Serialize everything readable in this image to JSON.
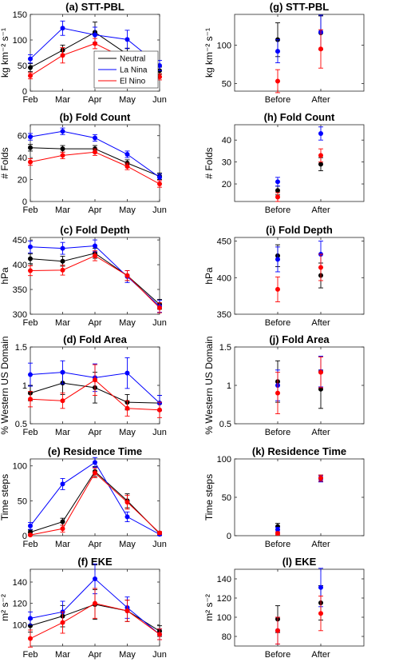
{
  "colors": {
    "Neutral": "#000000",
    "La Nina": "#0000ff",
    "El Nino": "#ff0000"
  },
  "legend": [
    "Neutral",
    "La Nina",
    "El Nino"
  ],
  "chart_data": [
    {
      "id": "a",
      "type": "line",
      "title": "(a) STT-PBL",
      "ylabel": "kg km⁻² s⁻¹",
      "categories": [
        "Feb",
        "Mar",
        "Apr",
        "May",
        "Jun"
      ],
      "ylim": [
        0,
        150
      ],
      "yticks": [
        0,
        50,
        100,
        150
      ],
      "legend": true,
      "series": [
        {
          "name": "Neutral",
          "values": [
            46,
            80,
            115,
            72,
            40
          ],
          "err": [
            8,
            10,
            20,
            12,
            7
          ]
        },
        {
          "name": "La Nina",
          "values": [
            63,
            123,
            110,
            101,
            50
          ],
          "err": [
            8,
            14,
            15,
            18,
            10
          ]
        },
        {
          "name": "El Nino",
          "values": [
            30,
            70,
            93,
            62,
            28
          ],
          "err": [
            6,
            15,
            10,
            12,
            6
          ]
        }
      ]
    },
    {
      "id": "g",
      "type": "scatter",
      "title": "(g) STT-PBL",
      "ylabel": "kg km⁻² s⁻¹",
      "categories": [
        "Before",
        "After"
      ],
      "ylim": [
        40,
        140
      ],
      "yticks": [
        50,
        100
      ],
      "legend": false,
      "series": [
        {
          "name": "Neutral",
          "values": [
            107,
            116
          ],
          "err": [
            22,
            22
          ]
        },
        {
          "name": "La Nina",
          "values": [
            92,
            117
          ],
          "err": [
            15,
            22
          ]
        },
        {
          "name": "El Nino",
          "values": [
            53,
            95
          ],
          "err": [
            15,
            25
          ]
        }
      ]
    },
    {
      "id": "b",
      "type": "line",
      "title": "(b) Fold Count",
      "ylabel": "# Folds",
      "categories": [
        "Feb",
        "Mar",
        "Apr",
        "May",
        "Jun"
      ],
      "ylim": [
        0,
        70
      ],
      "yticks": [
        0,
        20,
        40,
        60
      ],
      "legend": false,
      "series": [
        {
          "name": "Neutral",
          "values": [
            49,
            48,
            48,
            35,
            23
          ],
          "err": [
            3,
            3,
            3,
            3,
            3
          ]
        },
        {
          "name": "La Nina",
          "values": [
            59,
            64,
            58,
            43,
            22
          ],
          "err": [
            3,
            3,
            3,
            3,
            3
          ]
        },
        {
          "name": "El Nino",
          "values": [
            36,
            42,
            45,
            32,
            16
          ],
          "err": [
            3,
            3,
            3,
            3,
            3
          ]
        }
      ]
    },
    {
      "id": "h",
      "type": "scatter",
      "title": "(h) Fold Count",
      "ylabel": "# Folds",
      "categories": [
        "Before",
        "After"
      ],
      "ylim": [
        12,
        47
      ],
      "yticks": [
        20,
        30,
        40
      ],
      "legend": false,
      "series": [
        {
          "name": "Neutral",
          "values": [
            17,
            29
          ],
          "err": [
            2,
            3
          ]
        },
        {
          "name": "La Nina",
          "values": [
            21,
            43
          ],
          "err": [
            2,
            3
          ]
        },
        {
          "name": "El Nino",
          "values": [
            14,
            33
          ],
          "err": [
            2,
            3
          ]
        }
      ]
    },
    {
      "id": "c",
      "type": "line",
      "title": "(c) Fold Depth",
      "ylabel": "hPa",
      "categories": [
        "Feb",
        "Mar",
        "Apr",
        "May",
        "Jun"
      ],
      "ylim": [
        300,
        455
      ],
      "yticks": [
        300,
        350,
        400,
        450
      ],
      "legend": false,
      "series": [
        {
          "name": "Neutral",
          "values": [
            412,
            407,
            423,
            378,
            320
          ],
          "err": [
            10,
            10,
            10,
            10,
            10
          ]
        },
        {
          "name": "La Nina",
          "values": [
            436,
            433,
            438,
            376,
            316
          ],
          "err": [
            12,
            12,
            12,
            12,
            12
          ]
        },
        {
          "name": "El Nino",
          "values": [
            388,
            389,
            418,
            378,
            313
          ],
          "err": [
            10,
            10,
            10,
            10,
            10
          ]
        }
      ]
    },
    {
      "id": "i",
      "type": "scatter",
      "title": "(i) Fold Depth",
      "ylabel": "hPa",
      "categories": [
        "Before",
        "After"
      ],
      "ylim": [
        350,
        455
      ],
      "yticks": [
        350,
        400,
        450
      ],
      "legend": false,
      "series": [
        {
          "name": "Neutral",
          "values": [
            430,
            403
          ],
          "err": [
            15,
            17
          ]
        },
        {
          "name": "La Nina",
          "values": [
            425,
            432
          ],
          "err": [
            17,
            18
          ]
        },
        {
          "name": "El Nino",
          "values": [
            384,
            414
          ],
          "err": [
            17,
            18
          ]
        }
      ]
    },
    {
      "id": "d",
      "type": "line",
      "title": "(d) Fold Area",
      "ylabel": "% Western US Domain",
      "categories": [
        "Feb",
        "Mar",
        "Apr",
        "May",
        "Jun"
      ],
      "ylim": [
        0.5,
        1.5
      ],
      "yticks": [
        0.5,
        1,
        1.5
      ],
      "legend": false,
      "series": [
        {
          "name": "Neutral",
          "values": [
            0.9,
            1.03,
            0.97,
            0.78,
            0.77
          ],
          "err": [
            0.1,
            0.15,
            0.2,
            0.1,
            0.1
          ]
        },
        {
          "name": "La Nina",
          "values": [
            1.14,
            1.17,
            1.1,
            1.16,
            0.77
          ],
          "err": [
            0.15,
            0.15,
            0.18,
            0.2,
            0.1
          ]
        },
        {
          "name": "El Nino",
          "values": [
            0.82,
            0.8,
            1.07,
            0.7,
            0.68
          ],
          "err": [
            0.1,
            0.1,
            0.2,
            0.1,
            0.1
          ]
        }
      ]
    },
    {
      "id": "j",
      "type": "scatter",
      "title": "(j) Fold Area",
      "ylabel": "% Western US Domain",
      "categories": [
        "Before",
        "After"
      ],
      "ylim": [
        0.5,
        1.5
      ],
      "yticks": [
        0.5,
        1,
        1.5
      ],
      "legend": false,
      "series": [
        {
          "name": "Neutral",
          "values": [
            1.05,
            0.95
          ],
          "err": [
            0.27,
            0.25
          ]
        },
        {
          "name": "La Nina",
          "values": [
            1.0,
            1.18
          ],
          "err": [
            0.2,
            0.2
          ]
        },
        {
          "name": "El Nino",
          "values": [
            0.9,
            1.17
          ],
          "err": [
            0.27,
            0.2
          ]
        }
      ]
    },
    {
      "id": "e",
      "type": "line",
      "title": "(e) Residence Time",
      "ylabel": "Time steps",
      "categories": [
        "Feb",
        "Mar",
        "Apr",
        "May",
        "Jun"
      ],
      "ylim": [
        0,
        110
      ],
      "yticks": [
        0,
        50,
        100
      ],
      "legend": false,
      "series": [
        {
          "name": "Neutral",
          "values": [
            5,
            20,
            92,
            50,
            3
          ],
          "err": [
            3,
            5,
            7,
            10,
            2
          ]
        },
        {
          "name": "La Nina",
          "values": [
            14,
            74,
            105,
            27,
            2
          ],
          "err": [
            5,
            8,
            7,
            7,
            2
          ]
        },
        {
          "name": "El Nino",
          "values": [
            1,
            10,
            90,
            48,
            4
          ],
          "err": [
            1,
            5,
            7,
            10,
            2
          ]
        }
      ]
    },
    {
      "id": "k",
      "type": "scatter",
      "title": "(k) Residence Time",
      "ylabel": "Time steps",
      "categories": [
        "Before",
        "After"
      ],
      "ylim": [
        0,
        100
      ],
      "yticks": [
        0,
        50,
        100
      ],
      "legend": false,
      "series": [
        {
          "name": "Neutral",
          "values": [
            12,
            75
          ],
          "err": [
            4,
            4
          ]
        },
        {
          "name": "La Nina",
          "values": [
            8,
            74
          ],
          "err": [
            3,
            4
          ]
        },
        {
          "name": "El Nino",
          "values": [
            3,
            75
          ],
          "err": [
            2,
            4
          ]
        }
      ]
    },
    {
      "id": "f",
      "type": "line",
      "title": "(f) EKE",
      "ylabel": "m² s⁻²",
      "categories": [
        "Feb",
        "Mar",
        "Apr",
        "May",
        "Jun"
      ],
      "ylim": [
        80,
        152
      ],
      "yticks": [
        100,
        120,
        140
      ],
      "legend": false,
      "series": [
        {
          "name": "Neutral",
          "values": [
            99,
            108,
            119,
            113,
            94
          ],
          "err": [
            6,
            10,
            14,
            10,
            5
          ]
        },
        {
          "name": "La Nina",
          "values": [
            106,
            112,
            143,
            116,
            91
          ],
          "err": [
            6,
            10,
            14,
            10,
            5
          ]
        },
        {
          "name": "El Nino",
          "values": [
            87,
            102,
            120,
            113,
            91
          ],
          "err": [
            8,
            10,
            14,
            10,
            5
          ]
        }
      ]
    },
    {
      "id": "l",
      "type": "scatter",
      "title": "(l) EKE",
      "ylabel": "m² s⁻²",
      "categories": [
        "Before",
        "After"
      ],
      "ylim": [
        70,
        150
      ],
      "yticks": [
        80,
        100,
        120,
        140
      ],
      "legend": false,
      "series": [
        {
          "name": "Neutral",
          "values": [
            98,
            115
          ],
          "err": [
            14,
            18
          ]
        },
        {
          "name": "La Nina",
          "values": [
            86,
            131
          ],
          "err": [
            14,
            20
          ]
        },
        {
          "name": "El Nino",
          "values": [
            86,
            104
          ],
          "err": [
            14,
            18
          ]
        }
      ]
    }
  ]
}
